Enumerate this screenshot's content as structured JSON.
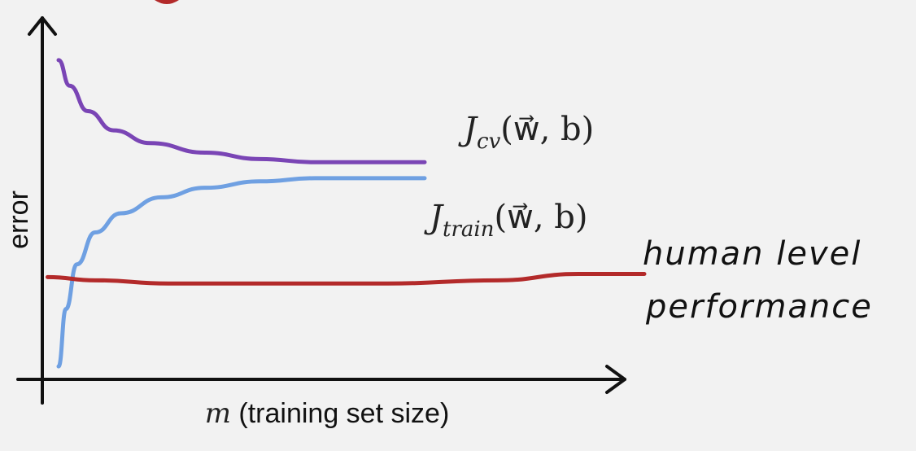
{
  "chart_data": {
    "type": "line",
    "xlabel_var": "m",
    "xlabel_rest": " (training set size)",
    "ylabel": "error",
    "grid": false,
    "series": [
      {
        "name_main": "J",
        "name_sub": "cv",
        "name_args": "(w⃗, b)",
        "color": "#7a45b5",
        "x": [
          0,
          0.03,
          0.08,
          0.15,
          0.25,
          0.4,
          0.55,
          0.7,
          0.85,
          1.0
        ],
        "y": [
          0.98,
          0.9,
          0.82,
          0.76,
          0.72,
          0.69,
          0.67,
          0.66,
          0.66,
          0.66
        ]
      },
      {
        "name_main": "J",
        "name_sub": "train",
        "name_args": "(w⃗, b)",
        "color": "#6fa0e2",
        "x": [
          0,
          0.02,
          0.05,
          0.1,
          0.17,
          0.28,
          0.4,
          0.55,
          0.7,
          0.85,
          1.0
        ],
        "y": [
          0.02,
          0.2,
          0.34,
          0.44,
          0.5,
          0.55,
          0.58,
          0.6,
          0.61,
          0.61,
          0.61
        ]
      },
      {
        "name": "human level performance",
        "name_line1": "human level",
        "name_line2": "performance",
        "color": "#b32a2a",
        "x": [
          -0.03,
          0.1,
          0.3,
          0.6,
          0.9,
          1.2,
          1.42,
          1.6
        ],
        "y": [
          0.3,
          0.29,
          0.28,
          0.28,
          0.28,
          0.29,
          0.31,
          0.31
        ]
      }
    ]
  }
}
